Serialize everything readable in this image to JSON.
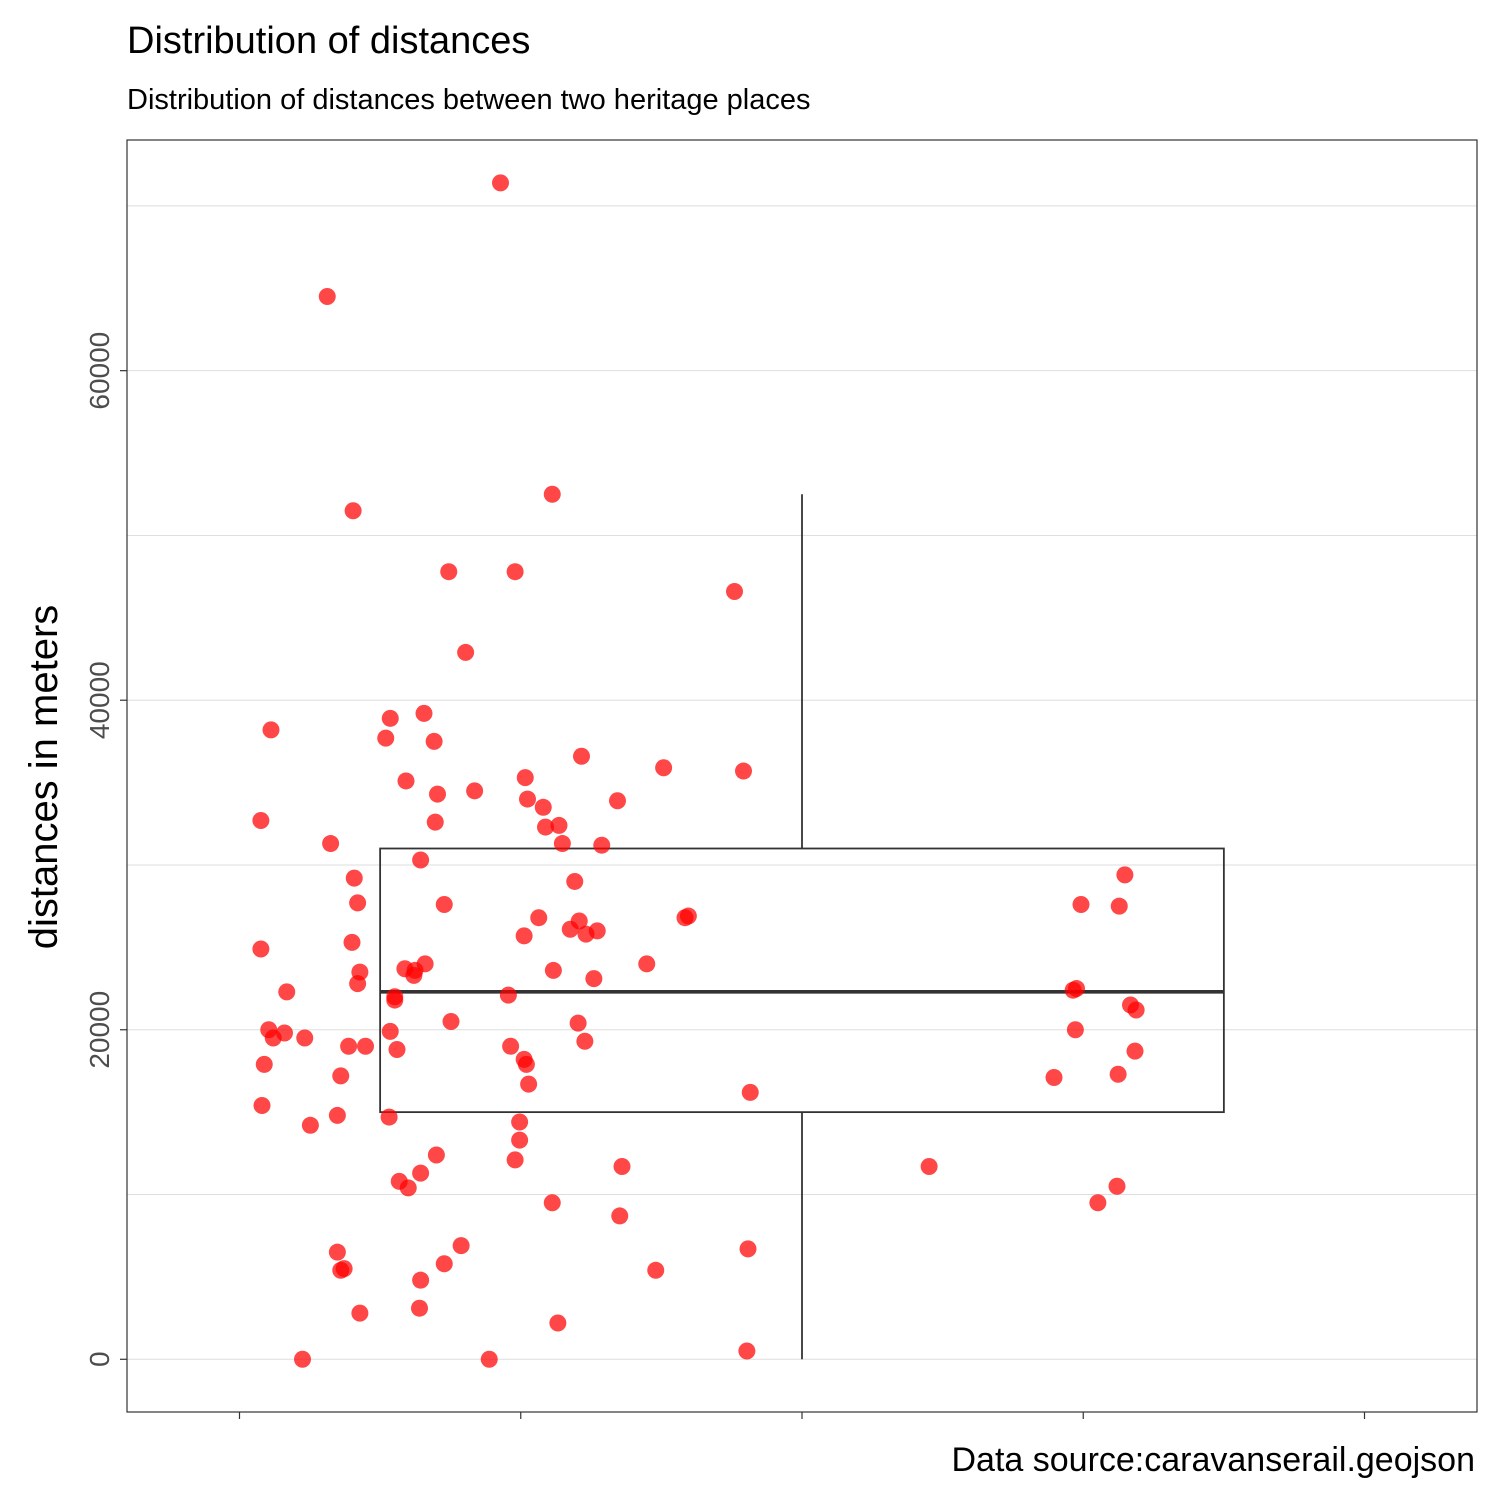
{
  "chart_data": {
    "type": "scatter",
    "overlay": "boxplot",
    "title": "Distribution of distances",
    "subtitle": "Distribution of distances between two heritage places",
    "xlabel": "",
    "ylabel": "distances in meters",
    "caption": "Data source:caravanserail.geojson",
    "ylim": [
      -3200,
      74000
    ],
    "xlim": [
      0.4,
      1.6
    ],
    "y_ticks": [
      0,
      20000,
      40000,
      60000
    ],
    "y_tick_labels": [
      "0",
      "20000",
      "40000",
      "60000"
    ],
    "grid": true,
    "point_color": "#ff0000",
    "box": {
      "q1": 15000,
      "median": 22300,
      "q3": 31000,
      "whisker_low": 0,
      "whisker_high": 52500,
      "box_x_range": [
        0.625,
        1.375
      ]
    },
    "points": [
      {
        "x": 0.732,
        "y": 71400
      },
      {
        "x": 0.578,
        "y": 64500
      },
      {
        "x": 0.601,
        "y": 51500
      },
      {
        "x": 0.778,
        "y": 52500
      },
      {
        "x": 0.686,
        "y": 47800
      },
      {
        "x": 0.745,
        "y": 47800
      },
      {
        "x": 0.94,
        "y": 46600
      },
      {
        "x": 0.701,
        "y": 42900
      },
      {
        "x": 0.528,
        "y": 38200
      },
      {
        "x": 0.634,
        "y": 38900
      },
      {
        "x": 0.63,
        "y": 37700
      },
      {
        "x": 0.664,
        "y": 39200
      },
      {
        "x": 0.673,
        "y": 37500
      },
      {
        "x": 0.804,
        "y": 36600
      },
      {
        "x": 0.877,
        "y": 35900
      },
      {
        "x": 0.948,
        "y": 35700
      },
      {
        "x": 0.648,
        "y": 35100
      },
      {
        "x": 0.754,
        "y": 35300
      },
      {
        "x": 0.756,
        "y": 34000
      },
      {
        "x": 0.77,
        "y": 33500
      },
      {
        "x": 0.676,
        "y": 34300
      },
      {
        "x": 0.709,
        "y": 34500
      },
      {
        "x": 0.836,
        "y": 33900
      },
      {
        "x": 0.519,
        "y": 32700
      },
      {
        "x": 0.674,
        "y": 32600
      },
      {
        "x": 0.784,
        "y": 32400
      },
      {
        "x": 0.772,
        "y": 32300
      },
      {
        "x": 0.581,
        "y": 31300
      },
      {
        "x": 0.787,
        "y": 31300
      },
      {
        "x": 0.822,
        "y": 31200
      },
      {
        "x": 0.661,
        "y": 30300
      },
      {
        "x": 0.602,
        "y": 29200
      },
      {
        "x": 0.798,
        "y": 29000
      },
      {
        "x": 1.287,
        "y": 29400
      },
      {
        "x": 0.605,
        "y": 27700
      },
      {
        "x": 0.682,
        "y": 27600
      },
      {
        "x": 0.766,
        "y": 26800
      },
      {
        "x": 0.802,
        "y": 26600
      },
      {
        "x": 0.794,
        "y": 26100
      },
      {
        "x": 0.808,
        "y": 25800
      },
      {
        "x": 0.818,
        "y": 26000
      },
      {
        "x": 0.753,
        "y": 25700
      },
      {
        "x": 0.896,
        "y": 26800
      },
      {
        "x": 0.899,
        "y": 26900
      },
      {
        "x": 1.248,
        "y": 27600
      },
      {
        "x": 1.282,
        "y": 27500
      },
      {
        "x": 0.519,
        "y": 24900
      },
      {
        "x": 0.6,
        "y": 25300
      },
      {
        "x": 0.665,
        "y": 24000
      },
      {
        "x": 0.779,
        "y": 23600
      },
      {
        "x": 0.815,
        "y": 23100
      },
      {
        "x": 0.862,
        "y": 24000
      },
      {
        "x": 0.607,
        "y": 23500
      },
      {
        "x": 0.655,
        "y": 23300
      },
      {
        "x": 0.647,
        "y": 23700
      },
      {
        "x": 0.656,
        "y": 23600
      },
      {
        "x": 0.638,
        "y": 22000
      },
      {
        "x": 0.638,
        "y": 21800
      },
      {
        "x": 0.605,
        "y": 22800
      },
      {
        "x": 0.739,
        "y": 22100
      },
      {
        "x": 0.542,
        "y": 22300
      },
      {
        "x": 1.241,
        "y": 22400
      },
      {
        "x": 1.244,
        "y": 22500
      },
      {
        "x": 1.292,
        "y": 21500
      },
      {
        "x": 1.297,
        "y": 21200
      },
      {
        "x": 0.526,
        "y": 20000
      },
      {
        "x": 0.53,
        "y": 19500
      },
      {
        "x": 0.54,
        "y": 19800
      },
      {
        "x": 0.558,
        "y": 19500
      },
      {
        "x": 0.597,
        "y": 19000
      },
      {
        "x": 0.634,
        "y": 19900
      },
      {
        "x": 0.64,
        "y": 18800
      },
      {
        "x": 0.612,
        "y": 19000
      },
      {
        "x": 0.688,
        "y": 20500
      },
      {
        "x": 0.801,
        "y": 20400
      },
      {
        "x": 0.807,
        "y": 19300
      },
      {
        "x": 0.741,
        "y": 19000
      },
      {
        "x": 0.753,
        "y": 18200
      },
      {
        "x": 0.755,
        "y": 17900
      },
      {
        "x": 1.243,
        "y": 20000
      },
      {
        "x": 1.296,
        "y": 18700
      },
      {
        "x": 0.522,
        "y": 17900
      },
      {
        "x": 0.59,
        "y": 17200
      },
      {
        "x": 0.757,
        "y": 16700
      },
      {
        "x": 0.52,
        "y": 15400
      },
      {
        "x": 0.563,
        "y": 14200
      },
      {
        "x": 0.587,
        "y": 14800
      },
      {
        "x": 0.633,
        "y": 14700
      },
      {
        "x": 0.749,
        "y": 14400
      },
      {
        "x": 0.749,
        "y": 13300
      },
      {
        "x": 1.224,
        "y": 17100
      },
      {
        "x": 1.281,
        "y": 17300
      },
      {
        "x": 0.954,
        "y": 16200
      },
      {
        "x": 0.675,
        "y": 12400
      },
      {
        "x": 0.745,
        "y": 12100
      },
      {
        "x": 0.642,
        "y": 10800
      },
      {
        "x": 0.65,
        "y": 10400
      },
      {
        "x": 0.661,
        "y": 11300
      },
      {
        "x": 0.84,
        "y": 11700
      },
      {
        "x": 1.113,
        "y": 11700
      },
      {
        "x": 1.28,
        "y": 10500
      },
      {
        "x": 1.263,
        "y": 9500
      },
      {
        "x": 0.778,
        "y": 9500
      },
      {
        "x": 0.838,
        "y": 8700
      },
      {
        "x": 0.587,
        "y": 6500
      },
      {
        "x": 0.59,
        "y": 5400
      },
      {
        "x": 0.593,
        "y": 5500
      },
      {
        "x": 0.682,
        "y": 5800
      },
      {
        "x": 0.697,
        "y": 6900
      },
      {
        "x": 0.661,
        "y": 4800
      },
      {
        "x": 0.66,
        "y": 3100
      },
      {
        "x": 0.607,
        "y": 2800
      },
      {
        "x": 0.783,
        "y": 2200
      },
      {
        "x": 0.87,
        "y": 5400
      },
      {
        "x": 0.952,
        "y": 6700
      },
      {
        "x": 0.556,
        "y": 0
      },
      {
        "x": 0.722,
        "y": 0
      },
      {
        "x": 0.951,
        "y": 500
      }
    ]
  }
}
